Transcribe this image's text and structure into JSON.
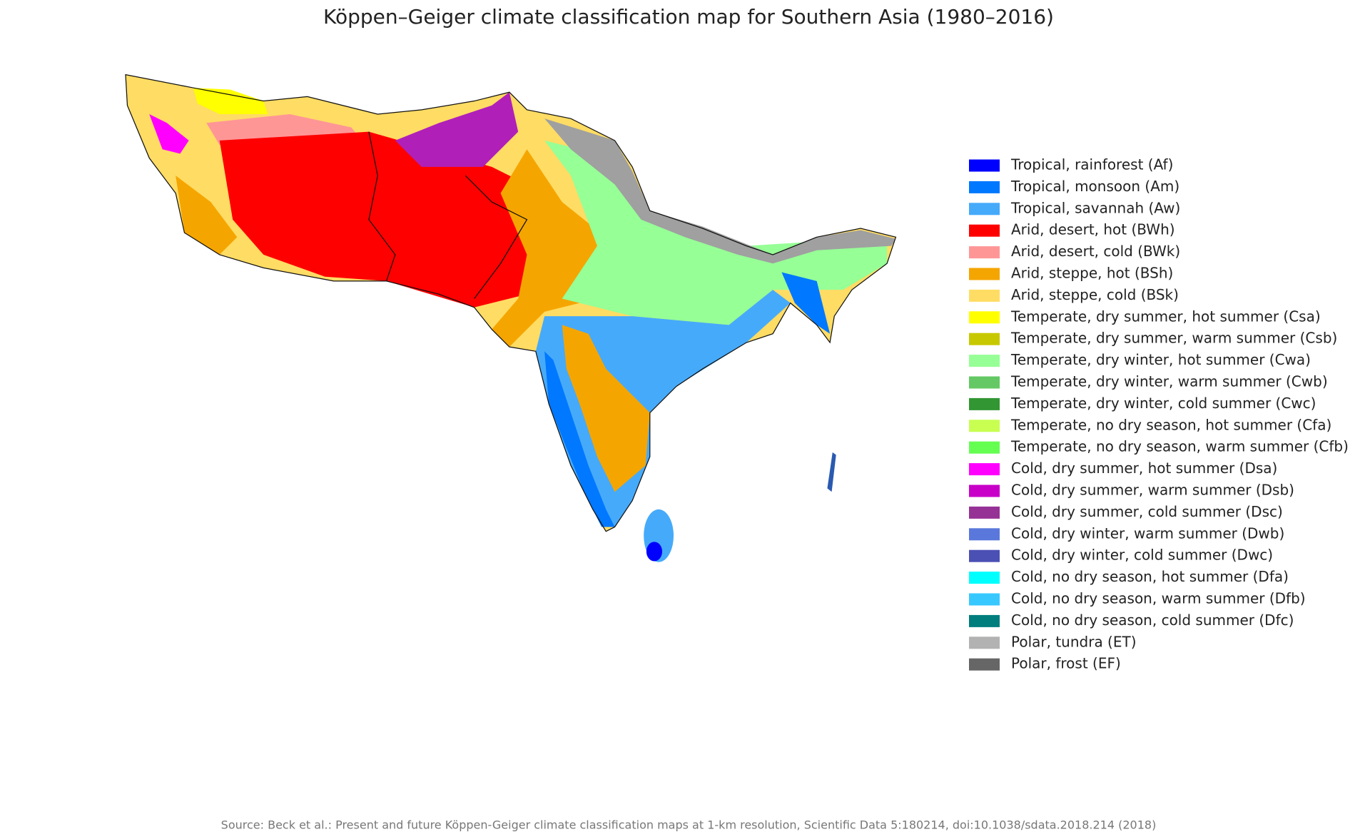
{
  "title": "Köppen–Geiger climate classification map for Southern Asia (1980–2016)",
  "legend": [
    {
      "label": "Tropical, rainforest (Af)",
      "color": "#0000fe"
    },
    {
      "label": "Tropical, monsoon (Am)",
      "color": "#0078ff"
    },
    {
      "label": "Tropical, savannah (Aw)",
      "color": "#46aafa"
    },
    {
      "label": "Arid, desert, hot (BWh)",
      "color": "#ff0000"
    },
    {
      "label": "Arid, desert, cold (BWk)",
      "color": "#ff9696"
    },
    {
      "label": "Arid, steppe, hot (BSh)",
      "color": "#f5a500"
    },
    {
      "label": "Arid, steppe, cold (BSk)",
      "color": "#ffdc64"
    },
    {
      "label": "Temperate, dry summer, hot summer (Csa)",
      "color": "#ffff00"
    },
    {
      "label": "Temperate, dry summer, warm summer (Csb)",
      "color": "#c8c800"
    },
    {
      "label": "Temperate, dry winter, hot summer (Cwa)",
      "color": "#96ff96"
    },
    {
      "label": "Temperate, dry winter, warm summer (Cwb)",
      "color": "#64c864"
    },
    {
      "label": "Temperate, dry winter, cold summer (Cwc)",
      "color": "#329632"
    },
    {
      "label": "Temperate, no dry season, hot summer (Cfa)",
      "color": "#c8ff50"
    },
    {
      "label": "Temperate, no dry season, warm summer (Cfb)",
      "color": "#64ff50"
    },
    {
      "label": "Cold, dry summer, hot summer (Dsa)",
      "color": "#ff00ff"
    },
    {
      "label": "Cold, dry summer, warm summer (Dsb)",
      "color": "#c800c8"
    },
    {
      "label": "Cold, dry summer, cold summer (Dsc)",
      "color": "#963296"
    },
    {
      "label": "Cold, dry winter, warm summer (Dwb)",
      "color": "#5a78dc"
    },
    {
      "label": "Cold, dry winter, cold summer (Dwc)",
      "color": "#4b50b4"
    },
    {
      "label": "Cold, no dry season, hot summer (Dfa)",
      "color": "#00ffff"
    },
    {
      "label": "Cold, no dry season, warm summer (Dfb)",
      "color": "#37c8ff"
    },
    {
      "label": "Cold, no dry season, cold summer (Dfc)",
      "color": "#007d7d"
    },
    {
      "label": "Polar, tundra (ET)",
      "color": "#b2b2b2"
    },
    {
      "label": "Polar, frost (EF)",
      "color": "#666666"
    }
  ],
  "source": "Source: Beck et al.: Present and future Köppen-Geiger climate classification maps at 1-km resolution, Scientific Data 5:180214, doi:10.1038/sdata.2018.214 (2018)"
}
